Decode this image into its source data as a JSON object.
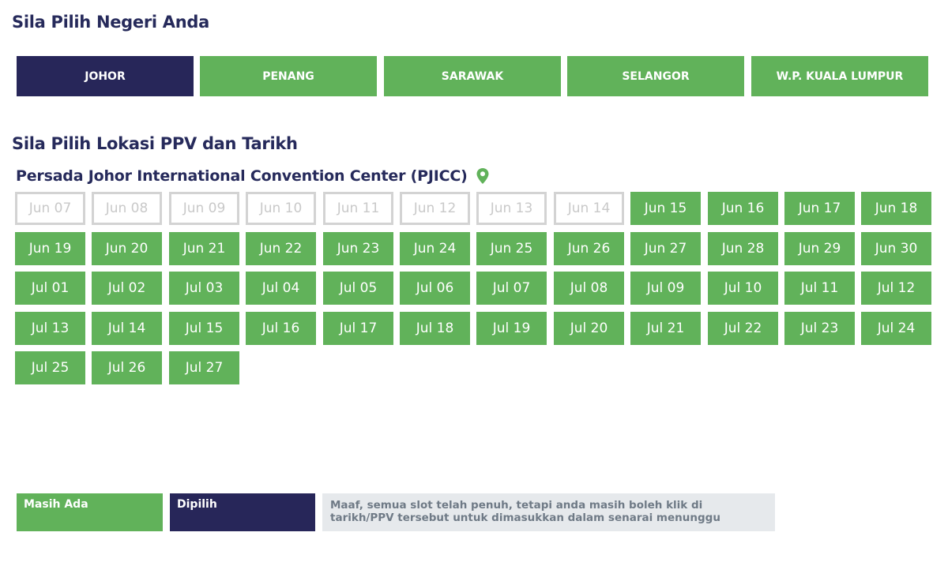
{
  "headings": {
    "states": "Sila Pilih Negeri Anda",
    "location_date": "Sila Pilih Lokasi PPV dan Tarikh"
  },
  "states": [
    {
      "label": "Johor",
      "active": true
    },
    {
      "label": "Penang",
      "active": false
    },
    {
      "label": "Sarawak",
      "active": false
    },
    {
      "label": "Selangor",
      "active": false
    },
    {
      "label": "W.P. Kuala Lumpur",
      "active": false
    }
  ],
  "location": {
    "name": "Persada Johor International Convention Center (PJICC)",
    "icon": "map-pin-icon"
  },
  "dates": [
    {
      "label": "Jun 07",
      "available": false
    },
    {
      "label": "Jun 08",
      "available": false
    },
    {
      "label": "Jun 09",
      "available": false
    },
    {
      "label": "Jun 10",
      "available": false
    },
    {
      "label": "Jun 11",
      "available": false
    },
    {
      "label": "Jun 12",
      "available": false
    },
    {
      "label": "Jun 13",
      "available": false
    },
    {
      "label": "Jun 14",
      "available": false
    },
    {
      "label": "Jun 15",
      "available": true
    },
    {
      "label": "Jun 16",
      "available": true
    },
    {
      "label": "Jun 17",
      "available": true
    },
    {
      "label": "Jun 18",
      "available": true
    },
    {
      "label": "Jun 19",
      "available": true
    },
    {
      "label": "Jun 20",
      "available": true
    },
    {
      "label": "Jun 21",
      "available": true
    },
    {
      "label": "Jun 22",
      "available": true
    },
    {
      "label": "Jun 23",
      "available": true
    },
    {
      "label": "Jun 24",
      "available": true
    },
    {
      "label": "Jun 25",
      "available": true
    },
    {
      "label": "Jun 26",
      "available": true
    },
    {
      "label": "Jun 27",
      "available": true
    },
    {
      "label": "Jun 28",
      "available": true
    },
    {
      "label": "Jun 29",
      "available": true
    },
    {
      "label": "Jun 30",
      "available": true
    },
    {
      "label": "Jul 01",
      "available": true
    },
    {
      "label": "Jul 02",
      "available": true
    },
    {
      "label": "Jul 03",
      "available": true
    },
    {
      "label": "Jul 04",
      "available": true
    },
    {
      "label": "Jul 05",
      "available": true
    },
    {
      "label": "Jul 06",
      "available": true
    },
    {
      "label": "Jul 07",
      "available": true
    },
    {
      "label": "Jul 08",
      "available": true
    },
    {
      "label": "Jul 09",
      "available": true
    },
    {
      "label": "Jul 10",
      "available": true
    },
    {
      "label": "Jul 11",
      "available": true
    },
    {
      "label": "Jul 12",
      "available": true
    },
    {
      "label": "Jul 13",
      "available": true
    },
    {
      "label": "Jul 14",
      "available": true
    },
    {
      "label": "Jul 15",
      "available": true
    },
    {
      "label": "Jul 16",
      "available": true
    },
    {
      "label": "Jul 17",
      "available": true
    },
    {
      "label": "Jul 18",
      "available": true
    },
    {
      "label": "Jul 19",
      "available": true
    },
    {
      "label": "Jul 20",
      "available": true
    },
    {
      "label": "Jul 21",
      "available": true
    },
    {
      "label": "Jul 22",
      "available": true
    },
    {
      "label": "Jul 23",
      "available": true
    },
    {
      "label": "Jul 24",
      "available": true
    },
    {
      "label": "Jul 25",
      "available": true
    },
    {
      "label": "Jul 26",
      "available": true
    },
    {
      "label": "Jul 27",
      "available": true
    }
  ],
  "legend": {
    "available": "Masih Ada",
    "chosen": "Dipilih",
    "full": "Maaf, semua slot telah penuh, tetapi anda masih boleh klik di tarikh/PPV tersebut untuk dimasukkan dalam senarai menunggu"
  },
  "colors": {
    "available": "#61b25a",
    "selected": "#272659",
    "disabled_border": "#d3d3d3",
    "disabled_text": "#c9c9c9",
    "full_bg": "#e6e9ec",
    "heading": "#262a5b"
  }
}
